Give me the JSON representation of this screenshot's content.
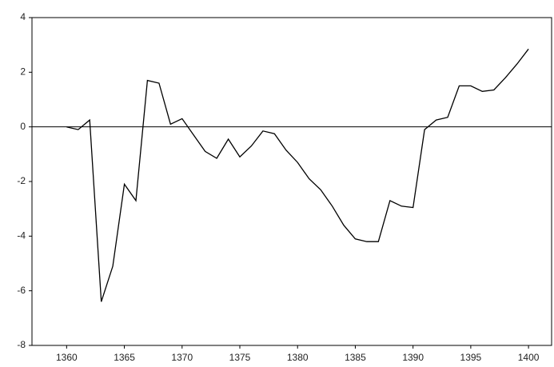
{
  "chart_data": {
    "type": "line",
    "x": [
      1360,
      1361,
      1362,
      1363,
      1364,
      1365,
      1366,
      1367,
      1368,
      1369,
      1370,
      1371,
      1372,
      1373,
      1374,
      1375,
      1376,
      1377,
      1378,
      1379,
      1380,
      1381,
      1382,
      1383,
      1384,
      1385,
      1386,
      1387,
      1388,
      1389,
      1390,
      1391,
      1392,
      1393,
      1394,
      1395,
      1396,
      1397,
      1398,
      1399,
      1400
    ],
    "series": [
      {
        "color": "#000000",
        "values": [
          0,
          -0.1,
          0.25,
          -6.4,
          -5.1,
          -2.1,
          -2.7,
          1.7,
          1.6,
          0.1,
          0.3,
          -0.3,
          -0.9,
          -1.15,
          -0.45,
          -1.1,
          -0.7,
          -0.15,
          -0.25,
          -0.85,
          -1.3,
          -1.9,
          -2.3,
          -2.9,
          -3.6,
          -4.1,
          -4.2,
          -4.2,
          -2.7,
          -2.9,
          -2.95,
          -0.1,
          0.25,
          0.35,
          1.5,
          1.5,
          1.3,
          1.35,
          1.8,
          2.3,
          2.85
        ]
      }
    ],
    "xlim": [
      1357,
      1402
    ],
    "xticks": [
      1360,
      1365,
      1370,
      1375,
      1380,
      1385,
      1390,
      1395,
      1400
    ],
    "ylim": [
      -8,
      4
    ],
    "yticks": [
      -8,
      -6,
      -4,
      -2,
      0,
      2,
      4
    ],
    "zero_line": true
  }
}
